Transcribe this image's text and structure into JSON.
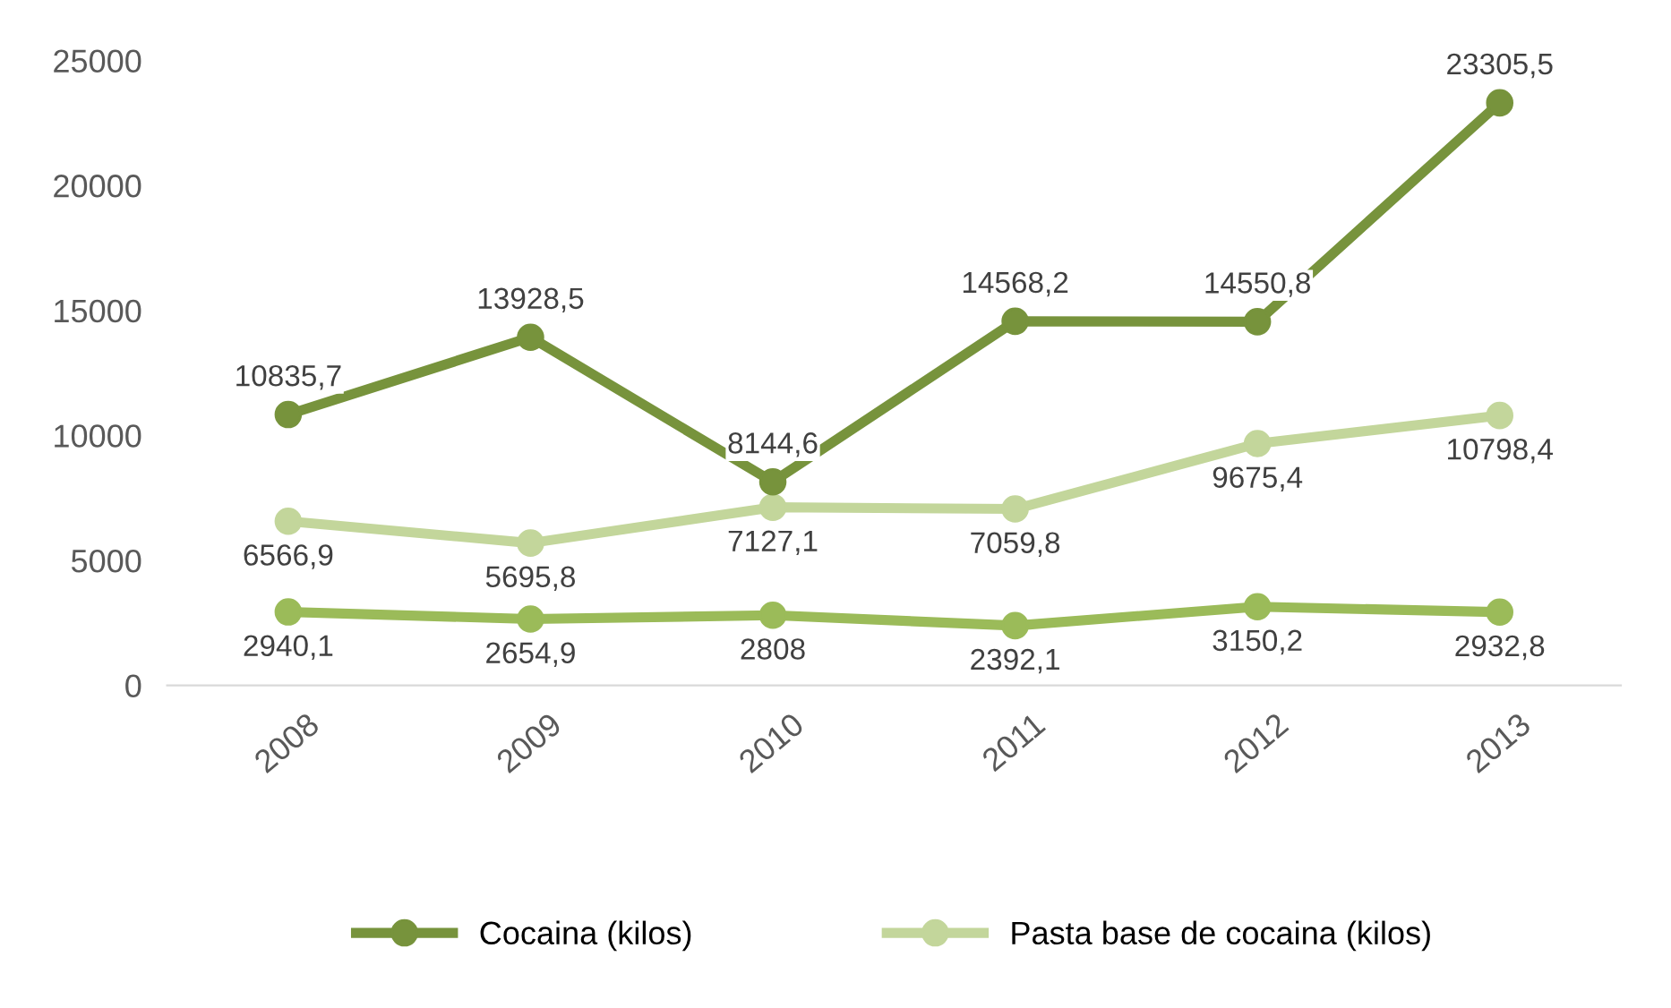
{
  "chart_data": {
    "type": "line",
    "categories": [
      "2008",
      "2009",
      "2010",
      "2011",
      "2012",
      "2013"
    ],
    "series": [
      {
        "name": "Cocaina (kilos)",
        "color": "#77933c",
        "values": [
          10835.7,
          13928.5,
          8144.6,
          14568.2,
          14550.8,
          23305.5
        ],
        "value_labels": [
          "10835,7",
          "13928,5",
          "8144,6",
          "14568,2",
          "14550,8",
          "23305,5"
        ]
      },
      {
        "name": "Pasta base de cocaina (kilos)",
        "color": "#c3d69b",
        "values": [
          6566.9,
          5695.8,
          7127.1,
          7059.8,
          9675.4,
          10798.4
        ],
        "value_labels": [
          "6566,9",
          "5695,8",
          "7127,1",
          "7059,8",
          "9675,4",
          "10798,4"
        ]
      },
      {
        "color": "#9bbb59",
        "values": [
          2940.1,
          2654.9,
          2808,
          2392.1,
          3150.2,
          2932.8
        ],
        "value_labels": [
          "2940,1",
          "2654,9",
          "2808",
          "2392,1",
          "3150,2",
          "2932,8"
        ]
      }
    ],
    "ylim": [
      0,
      25000
    ],
    "yticks": [
      0,
      5000,
      10000,
      15000,
      20000,
      25000
    ],
    "grid": false,
    "legend": "bottom",
    "marker": "circle",
    "line_style": "solid"
  }
}
